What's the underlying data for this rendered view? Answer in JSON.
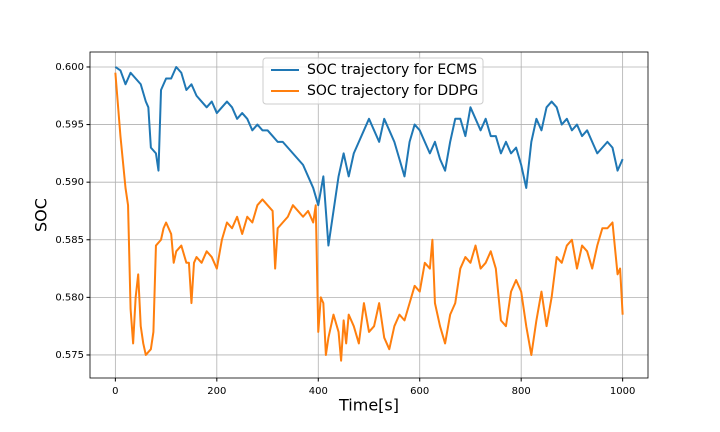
{
  "chart_data": {
    "type": "line",
    "xlabel": "Time[s]",
    "ylabel": "SOC",
    "xlim": [
      -50,
      1050
    ],
    "ylim": [
      0.573,
      0.6013
    ],
    "xticks": [
      0,
      200,
      400,
      600,
      800,
      1000
    ],
    "yticks": [
      0.575,
      {
        "value": 0.58,
        "label": "0.580"
      },
      0.585,
      {
        "value": 0.59,
        "label": "0.590"
      },
      0.595,
      {
        "value": 0.6,
        "label": "0.600"
      }
    ],
    "grid": true,
    "legend_loc": "upper center",
    "series": [
      {
        "name": "SOC trajectory for ECMS",
        "color": "#1f77b4",
        "x": [
          0,
          10,
          20,
          30,
          40,
          50,
          60,
          65,
          70,
          80,
          85,
          90,
          100,
          110,
          120,
          130,
          140,
          150,
          160,
          170,
          180,
          190,
          200,
          210,
          220,
          230,
          240,
          250,
          260,
          270,
          280,
          290,
          300,
          310,
          320,
          330,
          340,
          350,
          360,
          370,
          380,
          390,
          400,
          410,
          420,
          430,
          440,
          450,
          460,
          470,
          480,
          490,
          500,
          510,
          520,
          530,
          540,
          550,
          560,
          570,
          580,
          590,
          600,
          610,
          620,
          630,
          640,
          650,
          660,
          670,
          680,
          690,
          700,
          710,
          720,
          730,
          740,
          750,
          760,
          770,
          780,
          790,
          800,
          810,
          820,
          830,
          840,
          850,
          860,
          870,
          880,
          890,
          900,
          910,
          920,
          930,
          940,
          950,
          960,
          970,
          980,
          990,
          1000
        ],
        "values": [
          0.6,
          0.5997,
          0.5985,
          0.5995,
          0.599,
          0.5985,
          0.597,
          0.5965,
          0.593,
          0.5925,
          0.591,
          0.598,
          0.599,
          0.599,
          0.6,
          0.5995,
          0.598,
          0.5985,
          0.5975,
          0.597,
          0.5965,
          0.597,
          0.596,
          0.5965,
          0.597,
          0.5965,
          0.5955,
          0.596,
          0.5955,
          0.5945,
          0.595,
          0.5945,
          0.5945,
          0.594,
          0.5935,
          0.5935,
          0.593,
          0.5925,
          0.592,
          0.5915,
          0.5905,
          0.5895,
          0.588,
          0.5905,
          0.5845,
          0.5875,
          0.5905,
          0.5925,
          0.5905,
          0.5925,
          0.5935,
          0.5945,
          0.5955,
          0.5945,
          0.5935,
          0.5955,
          0.5945,
          0.5935,
          0.592,
          0.5905,
          0.5935,
          0.595,
          0.5945,
          0.5935,
          0.5925,
          0.5935,
          0.592,
          0.591,
          0.5935,
          0.5955,
          0.5955,
          0.594,
          0.5965,
          0.5955,
          0.5945,
          0.5955,
          0.594,
          0.594,
          0.5925,
          0.5935,
          0.5925,
          0.593,
          0.5915,
          0.5895,
          0.5935,
          0.5955,
          0.5945,
          0.5965,
          0.597,
          0.5965,
          0.595,
          0.5955,
          0.5945,
          0.595,
          0.594,
          0.5945,
          0.5935,
          0.5925,
          0.593,
          0.5935,
          0.593,
          0.591,
          0.592
        ]
      },
      {
        "name": "SOC trajectory for DDPG",
        "color": "#ff7f0e",
        "x": [
          0,
          10,
          20,
          25,
          30,
          35,
          40,
          45,
          50,
          55,
          60,
          70,
          75,
          80,
          90,
          95,
          100,
          110,
          115,
          120,
          130,
          140,
          145,
          150,
          155,
          160,
          170,
          180,
          190,
          200,
          210,
          220,
          230,
          240,
          250,
          260,
          270,
          280,
          290,
          300,
          310,
          315,
          320,
          330,
          340,
          350,
          360,
          370,
          380,
          390,
          395,
          400,
          405,
          410,
          415,
          420,
          430,
          440,
          445,
          450,
          455,
          460,
          470,
          480,
          490,
          500,
          510,
          520,
          530,
          540,
          550,
          560,
          570,
          580,
          590,
          600,
          610,
          620,
          625,
          630,
          640,
          650,
          660,
          670,
          680,
          690,
          700,
          710,
          720,
          730,
          740,
          750,
          760,
          770,
          780,
          790,
          800,
          810,
          820,
          830,
          840,
          850,
          860,
          870,
          880,
          890,
          900,
          910,
          920,
          930,
          940,
          950,
          960,
          970,
          980,
          990,
          995,
          1000
        ],
        "values": [
          0.5995,
          0.594,
          0.5895,
          0.588,
          0.579,
          0.576,
          0.58,
          0.582,
          0.5775,
          0.576,
          0.575,
          0.5755,
          0.577,
          0.5845,
          0.585,
          0.586,
          0.5865,
          0.5855,
          0.583,
          0.584,
          0.5845,
          0.583,
          0.583,
          0.5795,
          0.583,
          0.5835,
          0.583,
          0.584,
          0.5835,
          0.5825,
          0.585,
          0.5865,
          0.586,
          0.587,
          0.5855,
          0.587,
          0.5865,
          0.588,
          0.5885,
          0.588,
          0.5875,
          0.5825,
          0.586,
          0.5865,
          0.587,
          0.588,
          0.5875,
          0.587,
          0.5875,
          0.5865,
          0.588,
          0.577,
          0.58,
          0.5795,
          0.575,
          0.5765,
          0.5785,
          0.577,
          0.5745,
          0.578,
          0.576,
          0.5785,
          0.5775,
          0.576,
          0.5795,
          0.577,
          0.5775,
          0.5795,
          0.5765,
          0.5755,
          0.5775,
          0.5785,
          0.578,
          0.5795,
          0.581,
          0.5805,
          0.583,
          0.5825,
          0.585,
          0.5795,
          0.5775,
          0.576,
          0.5785,
          0.5795,
          0.5825,
          0.5835,
          0.583,
          0.5845,
          0.5825,
          0.583,
          0.584,
          0.5825,
          0.578,
          0.5775,
          0.5805,
          0.5815,
          0.5805,
          0.5775,
          0.575,
          0.578,
          0.5805,
          0.5775,
          0.58,
          0.5835,
          0.583,
          0.5845,
          0.585,
          0.5825,
          0.5845,
          0.584,
          0.5825,
          0.5845,
          0.586,
          0.586,
          0.5865,
          0.582,
          0.5825,
          0.5785
        ]
      }
    ]
  }
}
